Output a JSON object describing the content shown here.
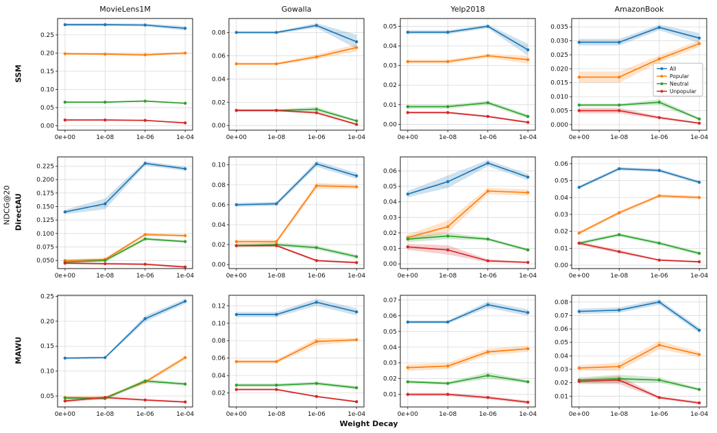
{
  "chart_data": {
    "type": "line",
    "title": "",
    "xlabel": "Weight Decay",
    "ylabel": "NDCG@20",
    "grid": true,
    "legend_position": "row0-col3-center-right",
    "categories": [
      "0e+00",
      "1e-08",
      "1e-06",
      "1e-04"
    ],
    "rows": [
      "SSM",
      "DirectAU",
      "MAWU"
    ],
    "cols": [
      "MovieLens1M",
      "Gowalla",
      "Yelp2018",
      "AmazonBook"
    ],
    "series_names": [
      "All",
      "Popular",
      "Neutral",
      "Unpopular"
    ],
    "series_colors": [
      "#1f77b4",
      "#ff7f0e",
      "#2ca02c",
      "#d62728"
    ],
    "legend": {
      "row": 0,
      "col": 3
    },
    "subplots": [
      {
        "r": 0,
        "c": 0,
        "yt": [
          0,
          0.05,
          0.1,
          0.15,
          0.2,
          0.25
        ],
        "dec": 2,
        "ylim": [
          -0.012,
          0.295
        ],
        "v": [
          [
            0.278,
            0.278,
            0.277,
            0.268
          ],
          [
            0.198,
            0.197,
            0.195,
            0.2
          ],
          [
            0.065,
            0.065,
            0.068,
            0.062
          ],
          [
            0.016,
            0.016,
            0.015,
            0.008
          ]
        ],
        "e": [
          [
            0.004,
            0.004,
            0.004,
            0.006
          ],
          [
            0.003,
            0.003,
            0.003,
            0.004
          ],
          [
            0.002,
            0.002,
            0.002,
            0.002
          ],
          [
            0.002,
            0.002,
            0.002,
            0.002
          ]
        ]
      },
      {
        "r": 0,
        "c": 1,
        "yt": [
          0,
          0.02,
          0.04,
          0.06,
          0.08
        ],
        "dec": 2,
        "ylim": [
          -0.004,
          0.092
        ],
        "v": [
          [
            0.08,
            0.08,
            0.086,
            0.072
          ],
          [
            0.053,
            0.053,
            0.059,
            0.067
          ],
          [
            0.013,
            0.013,
            0.014,
            0.004
          ],
          [
            0.013,
            0.013,
            0.011,
            0.001
          ]
        ],
        "e": [
          [
            0.001,
            0.001,
            0.002,
            0.006
          ],
          [
            0.001,
            0.001,
            0.002,
            0.003
          ],
          [
            0.001,
            0.001,
            0.002,
            0.001
          ],
          [
            0.001,
            0.001,
            0.001,
            0.001
          ]
        ]
      },
      {
        "r": 0,
        "c": 2,
        "yt": [
          0,
          0.01,
          0.02,
          0.03,
          0.04,
          0.05
        ],
        "dec": 2,
        "ylim": [
          -0.003,
          0.054
        ],
        "v": [
          [
            0.047,
            0.047,
            0.05,
            0.038
          ],
          [
            0.032,
            0.032,
            0.035,
            0.033
          ],
          [
            0.009,
            0.009,
            0.011,
            0.004
          ],
          [
            0.006,
            0.006,
            0.004,
            0.001
          ]
        ],
        "e": [
          [
            0.001,
            0.001,
            0.001,
            0.003
          ],
          [
            0.001,
            0.001,
            0.001,
            0.002
          ],
          [
            0.001,
            0.001,
            0.001,
            0.001
          ],
          [
            0.0005,
            0.0005,
            0.0005,
            0.0005
          ]
        ]
      },
      {
        "r": 0,
        "c": 3,
        "yt": [
          0,
          0.005,
          0.01,
          0.015,
          0.02,
          0.025,
          0.03,
          0.035
        ],
        "dec": 3,
        "ylim": [
          -0.002,
          0.038
        ],
        "v": [
          [
            0.0295,
            0.0295,
            0.0348,
            0.031
          ],
          [
            0.017,
            0.017,
            0.0235,
            0.029
          ],
          [
            0.007,
            0.007,
            0.008,
            0.002
          ],
          [
            0.005,
            0.005,
            0.0025,
            0.0005
          ]
        ],
        "e": [
          [
            0.0012,
            0.0012,
            0.001,
            0.0018
          ],
          [
            0.002,
            0.002,
            0.0012,
            0.0012
          ],
          [
            0.0005,
            0.0005,
            0.001,
            0.0005
          ],
          [
            0.001,
            0.001,
            0.0005,
            0.0003
          ]
        ]
      },
      {
        "r": 1,
        "c": 0,
        "yt": [
          0.05,
          0.075,
          0.1,
          0.125,
          0.15,
          0.175,
          0.2,
          0.225
        ],
        "dec": 3,
        "ylim": [
          0.035,
          0.242
        ],
        "v": [
          [
            0.14,
            0.155,
            0.23,
            0.22
          ],
          [
            0.05,
            0.052,
            0.098,
            0.096
          ],
          [
            0.047,
            0.05,
            0.09,
            0.085
          ],
          [
            0.045,
            0.044,
            0.043,
            0.038
          ]
        ],
        "e": [
          [
            0.004,
            0.01,
            0.004,
            0.004
          ],
          [
            0.002,
            0.003,
            0.003,
            0.002
          ],
          [
            0.002,
            0.003,
            0.003,
            0.002
          ],
          [
            0.002,
            0.002,
            0.002,
            0.002
          ]
        ]
      },
      {
        "r": 1,
        "c": 1,
        "yt": [
          0,
          0.02,
          0.04,
          0.06,
          0.08,
          0.1
        ],
        "dec": 2,
        "ylim": [
          -0.004,
          0.108
        ],
        "v": [
          [
            0.06,
            0.061,
            0.101,
            0.089
          ],
          [
            0.023,
            0.023,
            0.079,
            0.078
          ],
          [
            0.019,
            0.02,
            0.017,
            0.008
          ],
          [
            0.019,
            0.019,
            0.004,
            0.002
          ]
        ],
        "e": [
          [
            0.002,
            0.002,
            0.003,
            0.003
          ],
          [
            0.002,
            0.002,
            0.003,
            0.002
          ],
          [
            0.002,
            0.002,
            0.002,
            0.002
          ],
          [
            0.001,
            0.001,
            0.001,
            0.001
          ]
        ]
      },
      {
        "r": 1,
        "c": 2,
        "yt": [
          0,
          0.01,
          0.02,
          0.03,
          0.04,
          0.05,
          0.06
        ],
        "dec": 2,
        "ylim": [
          -0.003,
          0.069
        ],
        "v": [
          [
            0.045,
            0.053,
            0.065,
            0.056
          ],
          [
            0.017,
            0.024,
            0.047,
            0.046
          ],
          [
            0.016,
            0.018,
            0.016,
            0.009
          ],
          [
            0.011,
            0.009,
            0.002,
            0.001
          ]
        ],
        "e": [
          [
            0.002,
            0.004,
            0.002,
            0.002
          ],
          [
            0.002,
            0.004,
            0.002,
            0.002
          ],
          [
            0.002,
            0.002,
            0.001,
            0.001
          ],
          [
            0.002,
            0.003,
            0.001,
            0.0005
          ]
        ]
      },
      {
        "r": 1,
        "c": 3,
        "yt": [
          0,
          0.01,
          0.02,
          0.03,
          0.04,
          0.05,
          0.06
        ],
        "dec": 2,
        "ylim": [
          -0.002,
          0.064
        ],
        "v": [
          [
            0.046,
            0.057,
            0.056,
            0.049
          ],
          [
            0.019,
            0.031,
            0.041,
            0.04
          ],
          [
            0.013,
            0.018,
            0.013,
            0.007
          ],
          [
            0.013,
            0.008,
            0.003,
            0.002
          ]
        ],
        "e": [
          [
            0.001,
            0.001,
            0.001,
            0.001
          ],
          [
            0.001,
            0.001,
            0.001,
            0.001
          ],
          [
            0.001,
            0.001,
            0.001,
            0.001
          ],
          [
            0.001,
            0.001,
            0.0005,
            0.0005
          ]
        ]
      },
      {
        "r": 2,
        "c": 0,
        "yt": [
          0.05,
          0.1,
          0.15,
          0.2,
          0.25
        ],
        "dec": 2,
        "ylim": [
          0.028,
          0.252
        ],
        "v": [
          [
            0.126,
            0.127,
            0.205,
            0.24
          ],
          [
            0.047,
            0.047,
            0.078,
            0.127
          ],
          [
            0.046,
            0.045,
            0.08,
            0.074
          ],
          [
            0.04,
            0.047,
            0.042,
            0.038
          ]
        ],
        "e": [
          [
            0.002,
            0.002,
            0.006,
            0.005
          ],
          [
            0.002,
            0.002,
            0.004,
            0.004
          ],
          [
            0.003,
            0.003,
            0.004,
            0.003
          ],
          [
            0.003,
            0.003,
            0.002,
            0.002
          ]
        ]
      },
      {
        "r": 2,
        "c": 1,
        "yt": [
          0.02,
          0.04,
          0.06,
          0.08,
          0.1,
          0.12
        ],
        "dec": 2,
        "ylim": [
          0.004,
          0.132
        ],
        "v": [
          [
            0.11,
            0.11,
            0.124,
            0.113
          ],
          [
            0.056,
            0.056,
            0.079,
            0.081
          ],
          [
            0.029,
            0.029,
            0.031,
            0.026
          ],
          [
            0.024,
            0.024,
            0.016,
            0.01
          ]
        ],
        "e": [
          [
            0.003,
            0.003,
            0.004,
            0.004
          ],
          [
            0.002,
            0.002,
            0.004,
            0.002
          ],
          [
            0.002,
            0.002,
            0.002,
            0.002
          ],
          [
            0.001,
            0.001,
            0.001,
            0.001
          ]
        ]
      },
      {
        "r": 2,
        "c": 2,
        "yt": [
          0.01,
          0.02,
          0.03,
          0.04,
          0.05,
          0.06,
          0.07
        ],
        "dec": 2,
        "ylim": [
          0.002,
          0.073
        ],
        "v": [
          [
            0.056,
            0.056,
            0.067,
            0.062
          ],
          [
            0.027,
            0.028,
            0.037,
            0.039
          ],
          [
            0.018,
            0.017,
            0.022,
            0.018
          ],
          [
            0.01,
            0.01,
            0.008,
            0.005
          ]
        ],
        "e": [
          [
            0.001,
            0.001,
            0.002,
            0.002
          ],
          [
            0.002,
            0.002,
            0.002,
            0.002
          ],
          [
            0.001,
            0.001,
            0.002,
            0.001
          ],
          [
            0.001,
            0.001,
            0.001,
            0.001
          ]
        ]
      },
      {
        "r": 2,
        "c": 3,
        "yt": [
          0.01,
          0.02,
          0.03,
          0.04,
          0.05,
          0.06,
          0.07,
          0.08
        ],
        "dec": 2,
        "ylim": [
          0.002,
          0.085
        ],
        "v": [
          [
            0.073,
            0.074,
            0.08,
            0.059
          ],
          [
            0.031,
            0.032,
            0.048,
            0.041
          ],
          [
            0.022,
            0.023,
            0.022,
            0.015
          ],
          [
            0.021,
            0.022,
            0.009,
            0.005
          ]
        ],
        "e": [
          [
            0.002,
            0.002,
            0.002,
            0.002
          ],
          [
            0.002,
            0.003,
            0.003,
            0.002
          ],
          [
            0.002,
            0.003,
            0.002,
            0.001
          ],
          [
            0.002,
            0.003,
            0.001,
            0.001
          ]
        ]
      }
    ]
  }
}
